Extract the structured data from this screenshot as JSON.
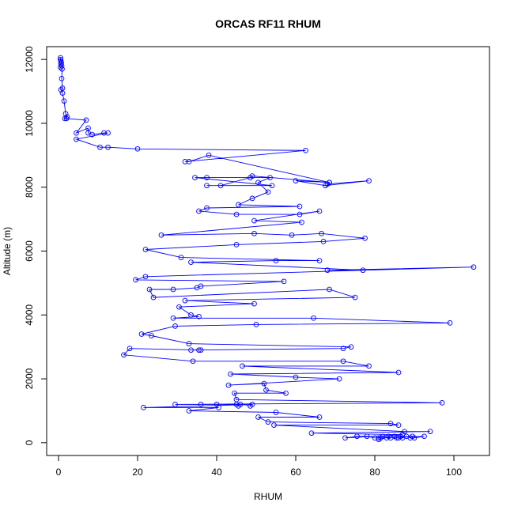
{
  "chart_data": {
    "type": "scatter",
    "title": "ORCAS RF11 RHUM",
    "xlabel": "RHUM",
    "ylabel": "Altitude (m)",
    "xlim": [
      -3,
      109
    ],
    "ylim": [
      -400,
      12400
    ],
    "x_ticks": [
      0,
      20,
      40,
      60,
      80,
      100
    ],
    "y_ticks": [
      0,
      2000,
      4000,
      6000,
      8000,
      10000,
      12000
    ],
    "grid": false,
    "legend": "none",
    "series_color": "#0000ff",
    "marker": "open-circle",
    "connected": true,
    "points": [
      [
        0.5,
        12050
      ],
      [
        0.5,
        12000
      ],
      [
        0.6,
        11950
      ],
      [
        0.7,
        11900
      ],
      [
        0.6,
        11850
      ],
      [
        0.8,
        11800
      ],
      [
        0.5,
        11750
      ],
      [
        0.9,
        11700
      ],
      [
        0.8,
        11400
      ],
      [
        1.0,
        11100
      ],
      [
        0.6,
        11050
      ],
      [
        1.0,
        10950
      ],
      [
        1.4,
        10700
      ],
      [
        1.8,
        10300
      ],
      [
        2.2,
        10200
      ],
      [
        1.6,
        10150
      ],
      [
        2.0,
        10150
      ],
      [
        7.0,
        10100
      ],
      [
        4.5,
        9700
      ],
      [
        7.5,
        9850
      ],
      [
        7.5,
        9700
      ],
      [
        8.5,
        9650
      ],
      [
        11.5,
        9700
      ],
      [
        12.5,
        9700
      ],
      [
        4.5,
        9500
      ],
      [
        10.5,
        9250
      ],
      [
        12.5,
        9250
      ],
      [
        20.0,
        9200
      ],
      [
        62.5,
        9150
      ],
      [
        32.0,
        8800
      ],
      [
        33.0,
        8800
      ],
      [
        38.0,
        9000
      ],
      [
        68.5,
        8150
      ],
      [
        68.0,
        8100
      ],
      [
        78.5,
        8200
      ],
      [
        67.5,
        8050
      ],
      [
        60.0,
        8200
      ],
      [
        68.5,
        8150
      ],
      [
        49.0,
        8350
      ],
      [
        48.5,
        8300
      ],
      [
        41.0,
        8050
      ],
      [
        37.5,
        8050
      ],
      [
        54.0,
        8050
      ],
      [
        34.5,
        8300
      ],
      [
        37.5,
        8300
      ],
      [
        53.5,
        8300
      ],
      [
        50.5,
        8150
      ],
      [
        53.0,
        7850
      ],
      [
        49.0,
        7650
      ],
      [
        45.5,
        7450
      ],
      [
        61.0,
        7400
      ],
      [
        37.5,
        7350
      ],
      [
        35.5,
        7250
      ],
      [
        45.0,
        7150
      ],
      [
        61.0,
        7150
      ],
      [
        66.0,
        7250
      ],
      [
        49.5,
        6950
      ],
      [
        61.5,
        6900
      ],
      [
        26.0,
        6500
      ],
      [
        49.5,
        6550
      ],
      [
        59.0,
        6500
      ],
      [
        66.5,
        6550
      ],
      [
        77.5,
        6400
      ],
      [
        67.0,
        6300
      ],
      [
        45.0,
        6200
      ],
      [
        22.0,
        6050
      ],
      [
        31.0,
        5800
      ],
      [
        66.0,
        5700
      ],
      [
        55.0,
        5700
      ],
      [
        33.5,
        5650
      ],
      [
        77.0,
        5400
      ],
      [
        68.0,
        5400
      ],
      [
        105.0,
        5500
      ],
      [
        22.0,
        5200
      ],
      [
        19.5,
        5100
      ],
      [
        57.0,
        5050
      ],
      [
        36.0,
        4900
      ],
      [
        35.0,
        4850
      ],
      [
        29.0,
        4800
      ],
      [
        23.0,
        4800
      ],
      [
        24.0,
        4550
      ],
      [
        68.5,
        4800
      ],
      [
        75.0,
        4550
      ],
      [
        32.0,
        4450
      ],
      [
        49.5,
        4350
      ],
      [
        30.5,
        4250
      ],
      [
        33.5,
        4000
      ],
      [
        35.5,
        3950
      ],
      [
        29.0,
        3900
      ],
      [
        64.5,
        3900
      ],
      [
        99.0,
        3750
      ],
      [
        50.0,
        3700
      ],
      [
        29.5,
        3650
      ],
      [
        21.0,
        3400
      ],
      [
        23.5,
        3350
      ],
      [
        33.0,
        3100
      ],
      [
        74.0,
        3000
      ],
      [
        72.0,
        2950
      ],
      [
        33.5,
        2900
      ],
      [
        35.5,
        2900
      ],
      [
        36.0,
        2900
      ],
      [
        18.0,
        2950
      ],
      [
        16.5,
        2750
      ],
      [
        34.0,
        2550
      ],
      [
        72.0,
        2550
      ],
      [
        78.5,
        2400
      ],
      [
        46.5,
        2400
      ],
      [
        86.0,
        2200
      ],
      [
        43.5,
        2150
      ],
      [
        60.0,
        2050
      ],
      [
        71.0,
        2000
      ],
      [
        43.0,
        1800
      ],
      [
        52.0,
        1850
      ],
      [
        52.5,
        1650
      ],
      [
        57.5,
        1550
      ],
      [
        44.5,
        1550
      ],
      [
        45.0,
        1350
      ],
      [
        97.0,
        1250
      ],
      [
        29.5,
        1200
      ],
      [
        36.0,
        1200
      ],
      [
        40.0,
        1200
      ],
      [
        45.0,
        1200
      ],
      [
        45.5,
        1150
      ],
      [
        46.0,
        1200
      ],
      [
        48.5,
        1150
      ],
      [
        49.0,
        1200
      ],
      [
        21.5,
        1100
      ],
      [
        40.5,
        1100
      ],
      [
        33.0,
        1000
      ],
      [
        55.0,
        950
      ],
      [
        66.0,
        800
      ],
      [
        50.5,
        800
      ],
      [
        53.0,
        650
      ],
      [
        84.0,
        600
      ],
      [
        86.0,
        550
      ],
      [
        54.5,
        550
      ],
      [
        87.5,
        350
      ],
      [
        94.0,
        350
      ],
      [
        64.0,
        300
      ],
      [
        87.0,
        250
      ],
      [
        72.5,
        150
      ],
      [
        75.5,
        200
      ],
      [
        78.0,
        200
      ],
      [
        80.0,
        150
      ],
      [
        81.0,
        150
      ],
      [
        82.0,
        200
      ],
      [
        83.0,
        150
      ],
      [
        83.5,
        200
      ],
      [
        84.0,
        150
      ],
      [
        85.0,
        200
      ],
      [
        85.5,
        150
      ],
      [
        86.0,
        150
      ],
      [
        86.5,
        200
      ],
      [
        87.0,
        150
      ],
      [
        88.0,
        200
      ],
      [
        89.0,
        150
      ],
      [
        89.5,
        200
      ],
      [
        90.0,
        150
      ],
      [
        92.5,
        200
      ],
      [
        81.5,
        150
      ],
      [
        81.0,
        100
      ]
    ]
  }
}
